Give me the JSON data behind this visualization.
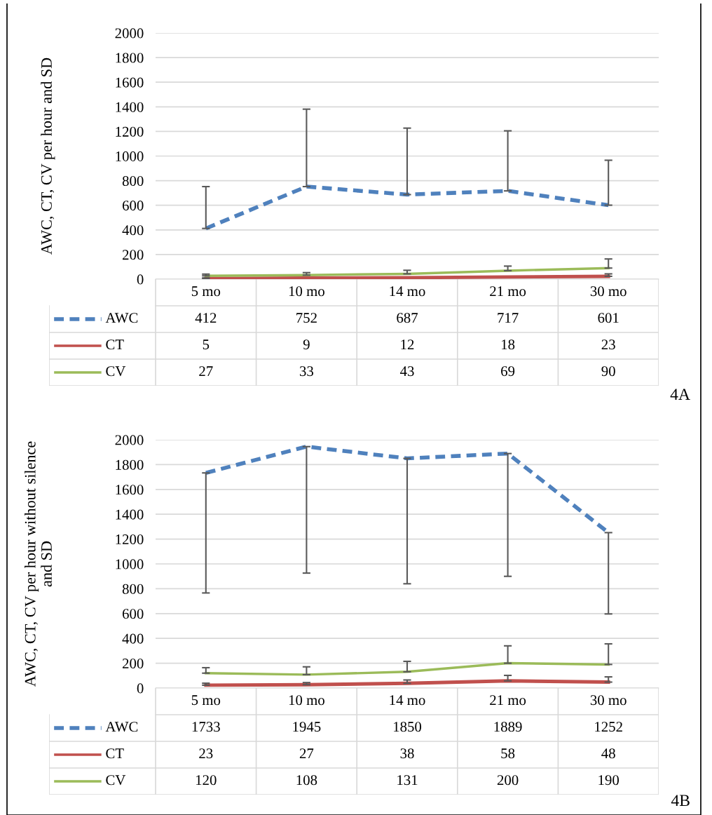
{
  "chart_data": [
    {
      "type": "line",
      "ylabel": "AWC, CT, CV per hour and SD",
      "categories": [
        "5 mo",
        "10 mo",
        "14 mo",
        "21 mo",
        "30 mo"
      ],
      "ylim": [
        0,
        2000
      ],
      "yticks": [
        0,
        200,
        400,
        600,
        800,
        1000,
        1200,
        1400,
        1600,
        1800,
        2000
      ],
      "grid": "y",
      "legend": "bottom",
      "data_labels": true,
      "annotations": [
        "4A"
      ],
      "series": [
        {
          "name": "AWC",
          "color": "#4f81bd",
          "line_style": "dashed",
          "values": [
            412,
            752,
            687,
            717,
            601
          ],
          "errors": [
            [
              412,
              752
            ],
            [
              752,
              1381
            ],
            [
              687,
              1227
            ],
            [
              717,
              1205
            ],
            [
              601,
              966
            ]
          ]
        },
        {
          "name": "CT",
          "color": "#c0504d",
          "line_style": "solid",
          "values": [
            5,
            9,
            12,
            18,
            23
          ],
          "errors": [
            [
              5,
              10
            ],
            null,
            null,
            null,
            [
              23,
              43
            ]
          ]
        },
        {
          "name": "CV",
          "color": "#9bbb59",
          "line_style": "solid",
          "values": [
            27,
            33,
            43,
            69,
            90
          ],
          "errors": [
            [
              27,
              41
            ],
            [
              33,
              53
            ],
            [
              43,
              72
            ],
            [
              69,
              106
            ],
            [
              90,
              164
            ]
          ]
        }
      ]
    },
    {
      "type": "line",
      "ylabel": "AWC, CT, CV per hour without silence\nand SD",
      "categories": [
        "5 mo",
        "10 mo",
        "14 mo",
        "21 mo",
        "30 mo"
      ],
      "ylim": [
        0,
        2000
      ],
      "yticks": [
        0,
        200,
        400,
        600,
        800,
        1000,
        1200,
        1400,
        1600,
        1800,
        2000
      ],
      "grid": "y",
      "legend": "bottom",
      "data_labels": true,
      "annotations": [
        "4B"
      ],
      "series": [
        {
          "name": "AWC",
          "color": "#4f81bd",
          "line_style": "dashed",
          "values": [
            1733,
            1945,
            1850,
            1889,
            1252
          ],
          "errors": [
            [
              766,
              1733
            ],
            [
              926,
              1945
            ],
            [
              840,
              1850
            ],
            [
              900,
              1889
            ],
            [
              597,
              1252
            ]
          ]
        },
        {
          "name": "CT",
          "color": "#c0504d",
          "line_style": "solid",
          "values": [
            23,
            27,
            38,
            58,
            48
          ],
          "errors": [
            [
              23,
              39
            ],
            [
              27,
              44
            ],
            [
              38,
              65
            ],
            [
              58,
              102
            ],
            [
              48,
              90
            ]
          ]
        },
        {
          "name": "CV",
          "color": "#9bbb59",
          "line_style": "solid",
          "values": [
            120,
            108,
            131,
            200,
            190
          ],
          "errors": [
            [
              120,
              164
            ],
            [
              108,
              171
            ],
            [
              131,
              215
            ],
            [
              200,
              340
            ],
            [
              190,
              356
            ]
          ]
        }
      ]
    }
  ]
}
